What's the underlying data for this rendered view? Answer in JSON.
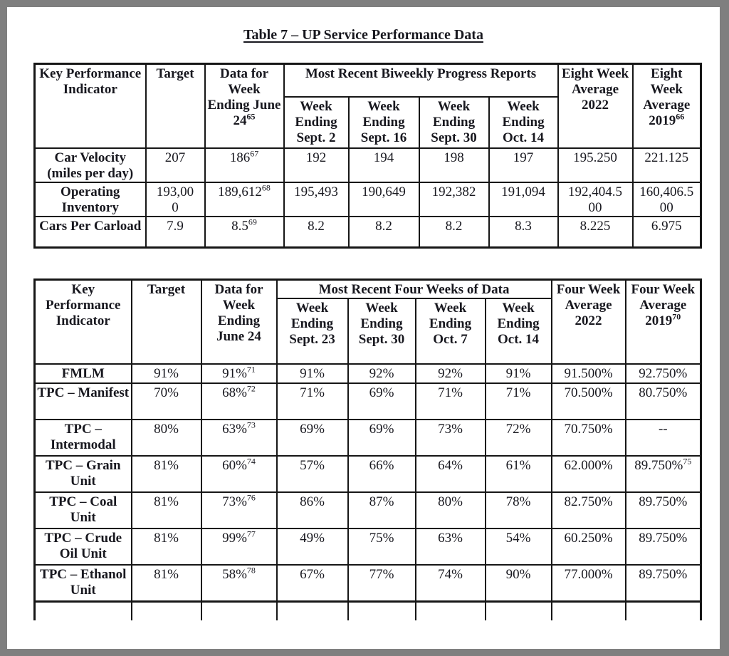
{
  "title": "Table 7 – UP Service Performance Data",
  "colors": {
    "frame": "#7f7f7f",
    "page_background": "#ffffff",
    "text": "#18181f",
    "table_border": "#161616"
  },
  "table1": {
    "header": {
      "kpi": "Key Performance Indicator",
      "target": "Target",
      "data_for": {
        "t": "Data for Week Ending June 24",
        "sup": "65"
      },
      "group": "Most Recent Biweekly Progress Reports",
      "weeks": [
        {
          "t": "Week Ending Sept. 2"
        },
        {
          "t": "Week Ending Sept. 16"
        },
        {
          "t": "Week Ending Sept. 30"
        },
        {
          "t": "Week Ending Oct. 14"
        }
      ],
      "avg1": {
        "t": "Eight Week Average 2022"
      },
      "avg2": {
        "t": "Eight Week Average 2019",
        "sup": "66"
      }
    },
    "rows": [
      {
        "label": "Car Velocity (miles per day)",
        "cells": [
          {
            "t": "207"
          },
          {
            "t": "186",
            "sup": "67"
          },
          {
            "t": "192"
          },
          {
            "t": "194"
          },
          {
            "t": "198"
          },
          {
            "t": "197"
          },
          {
            "t": "195.250"
          },
          {
            "t": "221.125"
          }
        ]
      },
      {
        "label": "Operating Inventory",
        "cells": [
          {
            "t": "193,000"
          },
          {
            "t": "189,612",
            "sup": "68"
          },
          {
            "t": "195,493"
          },
          {
            "t": "190,649"
          },
          {
            "t": "192,382"
          },
          {
            "t": "191,094"
          },
          {
            "t": "192,404.500"
          },
          {
            "t": "160,406.500"
          }
        ]
      },
      {
        "label": "Cars Per Carload",
        "cells": [
          {
            "t": "7.9"
          },
          {
            "t": "8.5",
            "sup": "69"
          },
          {
            "t": "8.2"
          },
          {
            "t": "8.2"
          },
          {
            "t": "8.2"
          },
          {
            "t": "8.3"
          },
          {
            "t": "8.225"
          },
          {
            "t": "6.975"
          }
        ]
      }
    ]
  },
  "table2": {
    "header": {
      "kpi": "Key Performance Indicator",
      "target": "Target",
      "data_for": {
        "t": "Data for Week Ending June 24"
      },
      "group": "Most Recent Four Weeks of Data",
      "weeks": [
        {
          "t": "Week Ending Sept. 23"
        },
        {
          "t": "Week Ending Sept. 30"
        },
        {
          "t": "Week Ending Oct. 7"
        },
        {
          "t": "Week Ending Oct. 14"
        }
      ],
      "avg1": {
        "t": "Four Week Average 2022"
      },
      "avg2": {
        "t": "Four Week Average 2019",
        "sup": "70"
      }
    },
    "rows": [
      {
        "label": "FMLM",
        "cells": [
          {
            "t": "91%"
          },
          {
            "t": "91%",
            "sup": "71"
          },
          {
            "t": "91%"
          },
          {
            "t": "92%"
          },
          {
            "t": "92%"
          },
          {
            "t": "91%"
          },
          {
            "t": "91.500%"
          },
          {
            "t": "92.750%"
          }
        ]
      },
      {
        "label": "TPC – Manifest",
        "cells": [
          {
            "t": "70%"
          },
          {
            "t": "68%",
            "sup": "72"
          },
          {
            "t": "71%"
          },
          {
            "t": "69%"
          },
          {
            "t": "71%"
          },
          {
            "t": "71%"
          },
          {
            "t": "70.500%"
          },
          {
            "t": "80.750%"
          }
        ]
      },
      {
        "label": "TPC – Intermodal",
        "cells": [
          {
            "t": "80%"
          },
          {
            "t": "63%",
            "sup": "73"
          },
          {
            "t": "69%"
          },
          {
            "t": "69%"
          },
          {
            "t": "73%"
          },
          {
            "t": "72%"
          },
          {
            "t": "70.750%"
          },
          {
            "t": "--"
          }
        ]
      },
      {
        "label": "TPC – Grain Unit",
        "cells": [
          {
            "t": "81%"
          },
          {
            "t": "60%",
            "sup": "74"
          },
          {
            "t": "57%"
          },
          {
            "t": "66%"
          },
          {
            "t": "64%"
          },
          {
            "t": "61%"
          },
          {
            "t": "62.000%"
          },
          {
            "t": "89.750%",
            "sup": "75"
          }
        ]
      },
      {
        "label": "TPC – Coal Unit",
        "cells": [
          {
            "t": "81%"
          },
          {
            "t": "73%",
            "sup": "76"
          },
          {
            "t": "86%"
          },
          {
            "t": "87%"
          },
          {
            "t": "80%"
          },
          {
            "t": "78%"
          },
          {
            "t": "82.750%"
          },
          {
            "t": "89.750%"
          }
        ]
      },
      {
        "label": "TPC – Crude Oil Unit",
        "cells": [
          {
            "t": "81%"
          },
          {
            "t": "99%",
            "sup": "77"
          },
          {
            "t": "49%"
          },
          {
            "t": "75%"
          },
          {
            "t": "63%"
          },
          {
            "t": "54%"
          },
          {
            "t": "60.250%"
          },
          {
            "t": "89.750%"
          }
        ]
      },
      {
        "label": "TPC – Ethanol Unit",
        "cells": [
          {
            "t": "81%"
          },
          {
            "t": "58%",
            "sup": "78"
          },
          {
            "t": "67%"
          },
          {
            "t": "77%"
          },
          {
            "t": "74%"
          },
          {
            "t": "90%"
          },
          {
            "t": "77.000%"
          },
          {
            "t": "89.750%"
          }
        ]
      }
    ]
  }
}
